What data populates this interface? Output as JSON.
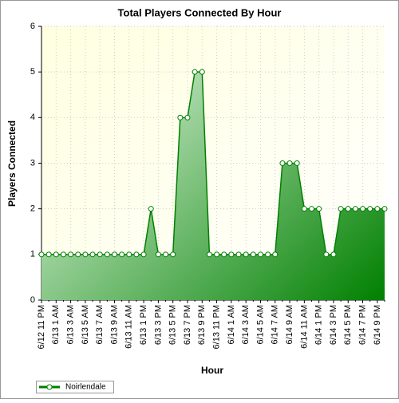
{
  "chart_data": {
    "type": "line",
    "title": "Total Players Connected By Hour",
    "x_label": "Hour",
    "y_label": "Players Connected",
    "categories": [
      "6/12 11 PM",
      null,
      "6/13 1 AM",
      null,
      "6/13 3 AM",
      null,
      "6/13 5 AM",
      null,
      "6/13 7 AM",
      null,
      "6/13 9 AM",
      null,
      "6/13 11 AM",
      null,
      "6/13 1 PM",
      null,
      "6/13 3 PM",
      null,
      "6/13 5 PM",
      null,
      "6/13 7 PM",
      null,
      "6/13 9 PM",
      null,
      "6/13 11 PM",
      null,
      "6/14 1 AM",
      null,
      "6/14 3 AM",
      null,
      "6/14 5 AM",
      null,
      "6/14 7 AM",
      null,
      "6/14 9 AM",
      null,
      "6/14 11 AM",
      null,
      "6/14 1 PM",
      null,
      "6/14 3 PM",
      null,
      "6/14 5 PM",
      null,
      "6/14 7 PM",
      null,
      "6/14 9 PM",
      null
    ],
    "series": [
      {
        "name": "Noirlendale",
        "color": "#008000",
        "values": [
          1,
          1,
          1,
          1,
          1,
          1,
          1,
          1,
          1,
          1,
          1,
          1,
          1,
          1,
          1,
          2,
          1,
          1,
          1,
          4,
          4,
          5,
          5,
          1,
          1,
          1,
          1,
          1,
          1,
          1,
          1,
          1,
          1,
          3,
          3,
          3,
          2,
          2,
          2,
          1,
          1,
          2,
          2,
          2,
          2,
          2,
          2,
          2
        ]
      }
    ],
    "ylim": [
      0,
      6
    ],
    "yticks": [
      0,
      1,
      2,
      3,
      4,
      5,
      6
    ],
    "grid": true,
    "legend": "bottom-left"
  }
}
